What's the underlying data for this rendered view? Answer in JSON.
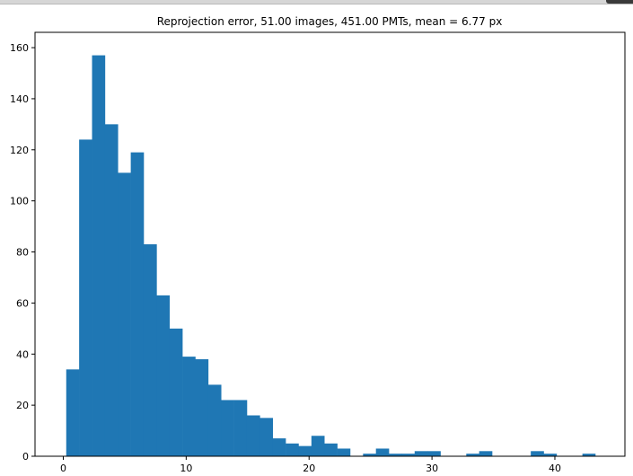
{
  "window": {
    "accent": "#3a3a3a",
    "bar_color": "#d6d6d6"
  },
  "chart_data": {
    "type": "bar",
    "title": "Reprojection error, 51.00 images, 451.00 PMTs, mean = 6.77 px",
    "xlabel": "",
    "ylabel": "",
    "xlim": [
      -2.3,
      45.7
    ],
    "ylim": [
      0,
      166
    ],
    "grid": false,
    "color": "#1f77b4",
    "bin_edges": [
      0.24,
      1.29,
      2.34,
      3.39,
      4.44,
      5.49,
      6.54,
      7.59,
      8.64,
      9.69,
      10.74,
      11.79,
      12.84,
      13.89,
      14.94,
      15.99,
      17.04,
      18.09,
      19.14,
      20.19,
      21.24,
      22.29,
      23.34,
      24.39,
      25.44,
      26.49,
      27.54,
      28.59,
      29.64,
      30.69,
      31.74,
      32.79,
      33.84,
      34.89,
      35.94,
      36.99,
      38.04,
      39.09,
      40.14,
      41.19,
      42.24,
      43.29
    ],
    "values": [
      34,
      124,
      157,
      130,
      111,
      119,
      83,
      63,
      50,
      39,
      38,
      28,
      22,
      22,
      16,
      15,
      7,
      5,
      4,
      8,
      5,
      3,
      0,
      1,
      3,
      1,
      1,
      2,
      2,
      0,
      0,
      1,
      2,
      0,
      0,
      0,
      2,
      1,
      0,
      0,
      1
    ],
    "x_ticks": [
      0,
      10,
      20,
      30,
      40
    ],
    "x_tick_labels": [
      "0",
      "10",
      "20",
      "30",
      "40"
    ],
    "y_ticks": [
      0,
      20,
      40,
      60,
      80,
      100,
      120,
      140,
      160
    ],
    "y_tick_labels": [
      "0",
      "20",
      "40",
      "60",
      "80",
      "100",
      "120",
      "140",
      "160"
    ]
  }
}
